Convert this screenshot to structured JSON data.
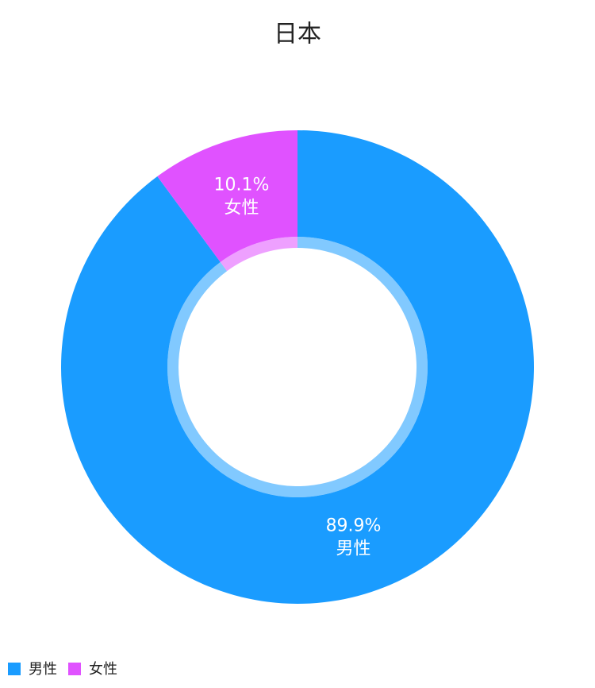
{
  "chart_data": {
    "type": "donut",
    "title": "日本",
    "categories": [
      "男性",
      "女性"
    ],
    "values": [
      89.9,
      10.1
    ],
    "value_labels": [
      "89.9%",
      "10.1%"
    ],
    "colors": [
      "#1a9cff",
      "#e052ff"
    ],
    "legend": "bottom-left"
  }
}
